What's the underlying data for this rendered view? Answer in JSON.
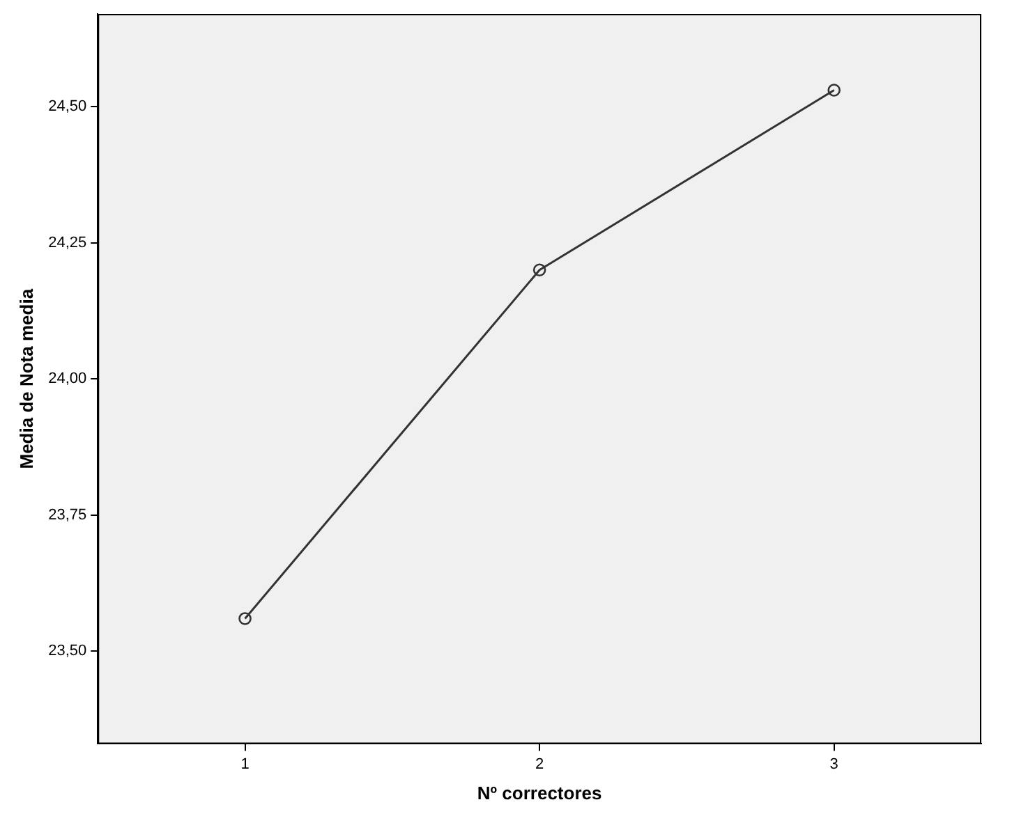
{
  "chart_data": {
    "type": "line",
    "xlabel": "Nº correctores",
    "ylabel": "Media de Nota media",
    "categories": [
      "1",
      "2",
      "3"
    ],
    "series": [
      {
        "color": "#333333",
        "values": [
          23.56,
          24.2,
          24.53
        ]
      }
    ],
    "ylim": [
      23.33,
      24.67
    ],
    "yticks": [
      {
        "value": 23.5,
        "label": "23,50"
      },
      {
        "value": 23.75,
        "label": "23,75"
      },
      {
        "value": 24,
        "label": "24,00"
      },
      {
        "value": 24.25,
        "label": "24,25"
      },
      {
        "value": 24.5,
        "label": "24,50"
      }
    ],
    "marker": "circle",
    "line_style": "solid",
    "grid": false,
    "legend": false
  }
}
